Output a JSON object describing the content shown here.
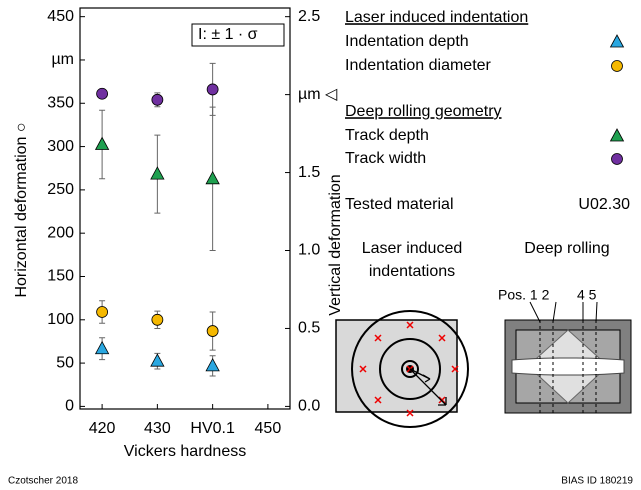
{
  "chart_data": {
    "type": "scatter",
    "x_label": "Vickers hardness",
    "y_label": "Horizontal deformation ○",
    "y2_label": "Vertical deformation",
    "x": [
      420,
      430,
      440
    ],
    "xlim": [
      416,
      454
    ],
    "xticks": [
      420,
      430,
      {
        "value": 440,
        "label": "HV0.1"
      },
      450
    ],
    "ylim": [
      -3,
      460
    ],
    "yticks": [
      0,
      50,
      100,
      150,
      200,
      250,
      300,
      350,
      {
        "value": 400,
        "label": "µm"
      },
      450
    ],
    "y2lim": [
      -0.0167,
      2.5556
    ],
    "y2ticks": [
      {
        "value": 0,
        "label": "0.0"
      },
      0.5,
      {
        "value": 1,
        "label": "1.0"
      },
      1.5,
      {
        "value": 2,
        "label": "µm ◁"
      },
      2.5
    ],
    "grid": false,
    "error_legend": "I: ± 1 · σ",
    "legend_headings": [
      "Laser induced indentation",
      "Deep rolling geometry"
    ],
    "series": [
      {
        "name": "Indentation depth",
        "color": "#2aa7e0",
        "marker": "triangle",
        "axis": "y2",
        "values": [
          0.37,
          0.29,
          0.26
        ],
        "errors": [
          0.07,
          0.05,
          0.065
        ]
      },
      {
        "name": "Indentation diameter",
        "color": "#f5b800",
        "marker": "circle",
        "values": [
          109,
          100,
          87
        ],
        "errors": [
          13,
          10,
          22
        ]
      },
      {
        "name": "Track depth",
        "color": "#1fa050",
        "marker": "triangle",
        "axis": "y2",
        "values": [
          1.68,
          1.49,
          1.46
        ],
        "errors": [
          0.22,
          0.25,
          0.46
        ]
      },
      {
        "name": "Track width",
        "color": "#7030a0",
        "marker": "circle",
        "values": [
          361,
          354,
          366
        ],
        "errors": [
          5,
          8,
          30
        ]
      }
    ],
    "material_label": "Tested material",
    "material": "U02.30",
    "diagram_labels": [
      "Laser induced",
      "indentations",
      "Deep rolling",
      "Pos. 1 2",
      "4 5"
    ],
    "credit": "Czotscher 2018",
    "id": "BIAS ID 180219"
  }
}
